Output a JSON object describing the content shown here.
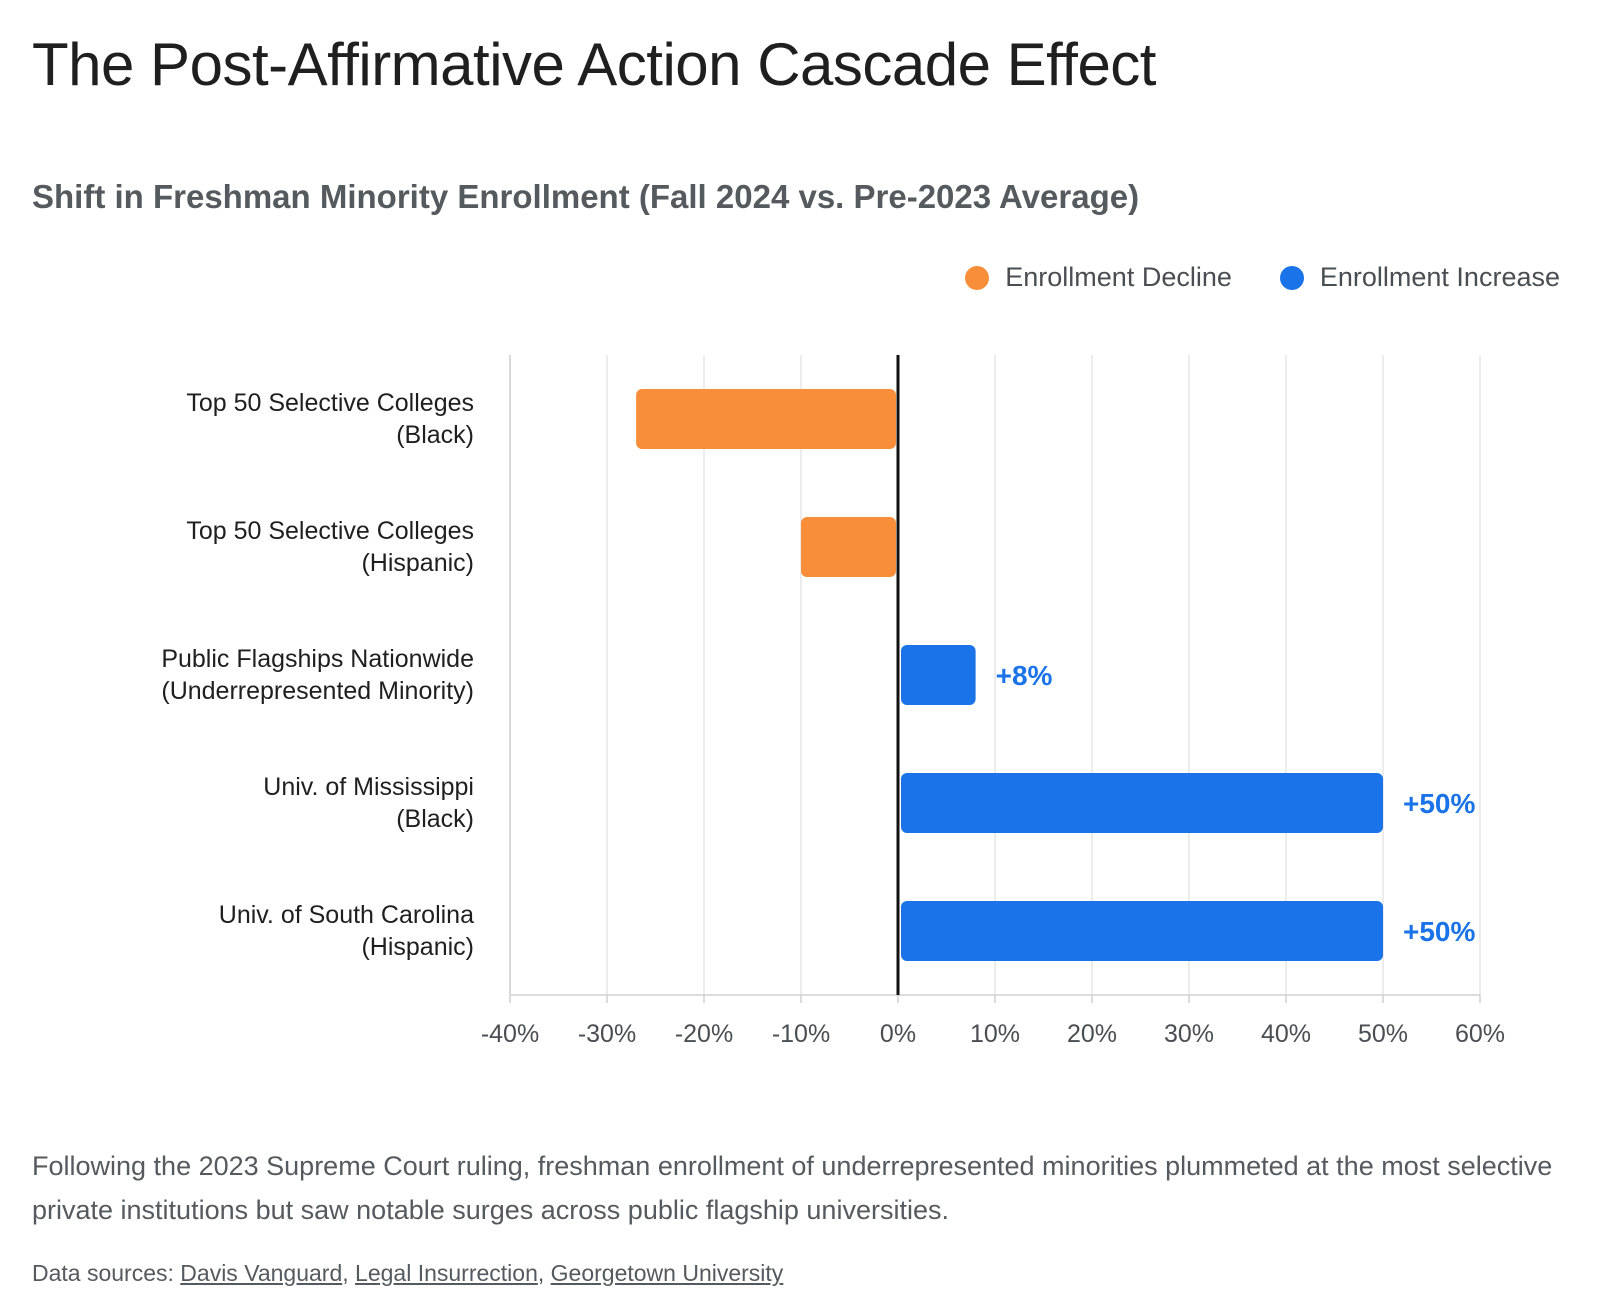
{
  "header": {
    "title": "The Post-Affirmative Action Cascade Effect",
    "subtitle": "Shift in Freshman Minority Enrollment (Fall 2024 vs. Pre-2023 Average)"
  },
  "legend": {
    "decline_label": "Enrollment Decline",
    "increase_label": "Enrollment Increase"
  },
  "colors": {
    "decline": "#F98E3A",
    "increase": "#1A73E8"
  },
  "chart_data": {
    "type": "bar",
    "orientation": "horizontal",
    "categories": [
      [
        "Top 50 Selective Colleges",
        "(Black)"
      ],
      [
        "Top 50 Selective Colleges",
        "(Hispanic)"
      ],
      [
        "Public Flagships Nationwide",
        "(Underrepresented Minority)"
      ],
      [
        "Univ. of Mississippi",
        "(Black)"
      ],
      [
        "Univ. of South Carolina",
        "(Hispanic)"
      ]
    ],
    "values": [
      -27,
      -10,
      8,
      50,
      50
    ],
    "data_labels": [
      "",
      "",
      "+8%",
      "+50%",
      "+50%"
    ],
    "xlim": [
      -40,
      60
    ],
    "xticks": [
      -40,
      -30,
      -20,
      -10,
      0,
      10,
      20,
      30,
      40,
      50,
      60
    ],
    "xtick_labels": [
      "-40%",
      "-30%",
      "-20%",
      "-10%",
      "0%",
      "10%",
      "20%",
      "30%",
      "40%",
      "50%",
      "60%"
    ],
    "grid": "vertical",
    "legend_position": "top-right"
  },
  "footer": {
    "caption": "Following the 2023 Supreme Court ruling, freshman enrollment of underrepresented minorities plummeted at the most selective private institutions but saw notable surges across public flagship universities.",
    "sources_prefix": "Data sources: ",
    "sources": [
      "Davis Vanguard",
      "Legal Insurrection",
      "Georgetown University"
    ]
  }
}
